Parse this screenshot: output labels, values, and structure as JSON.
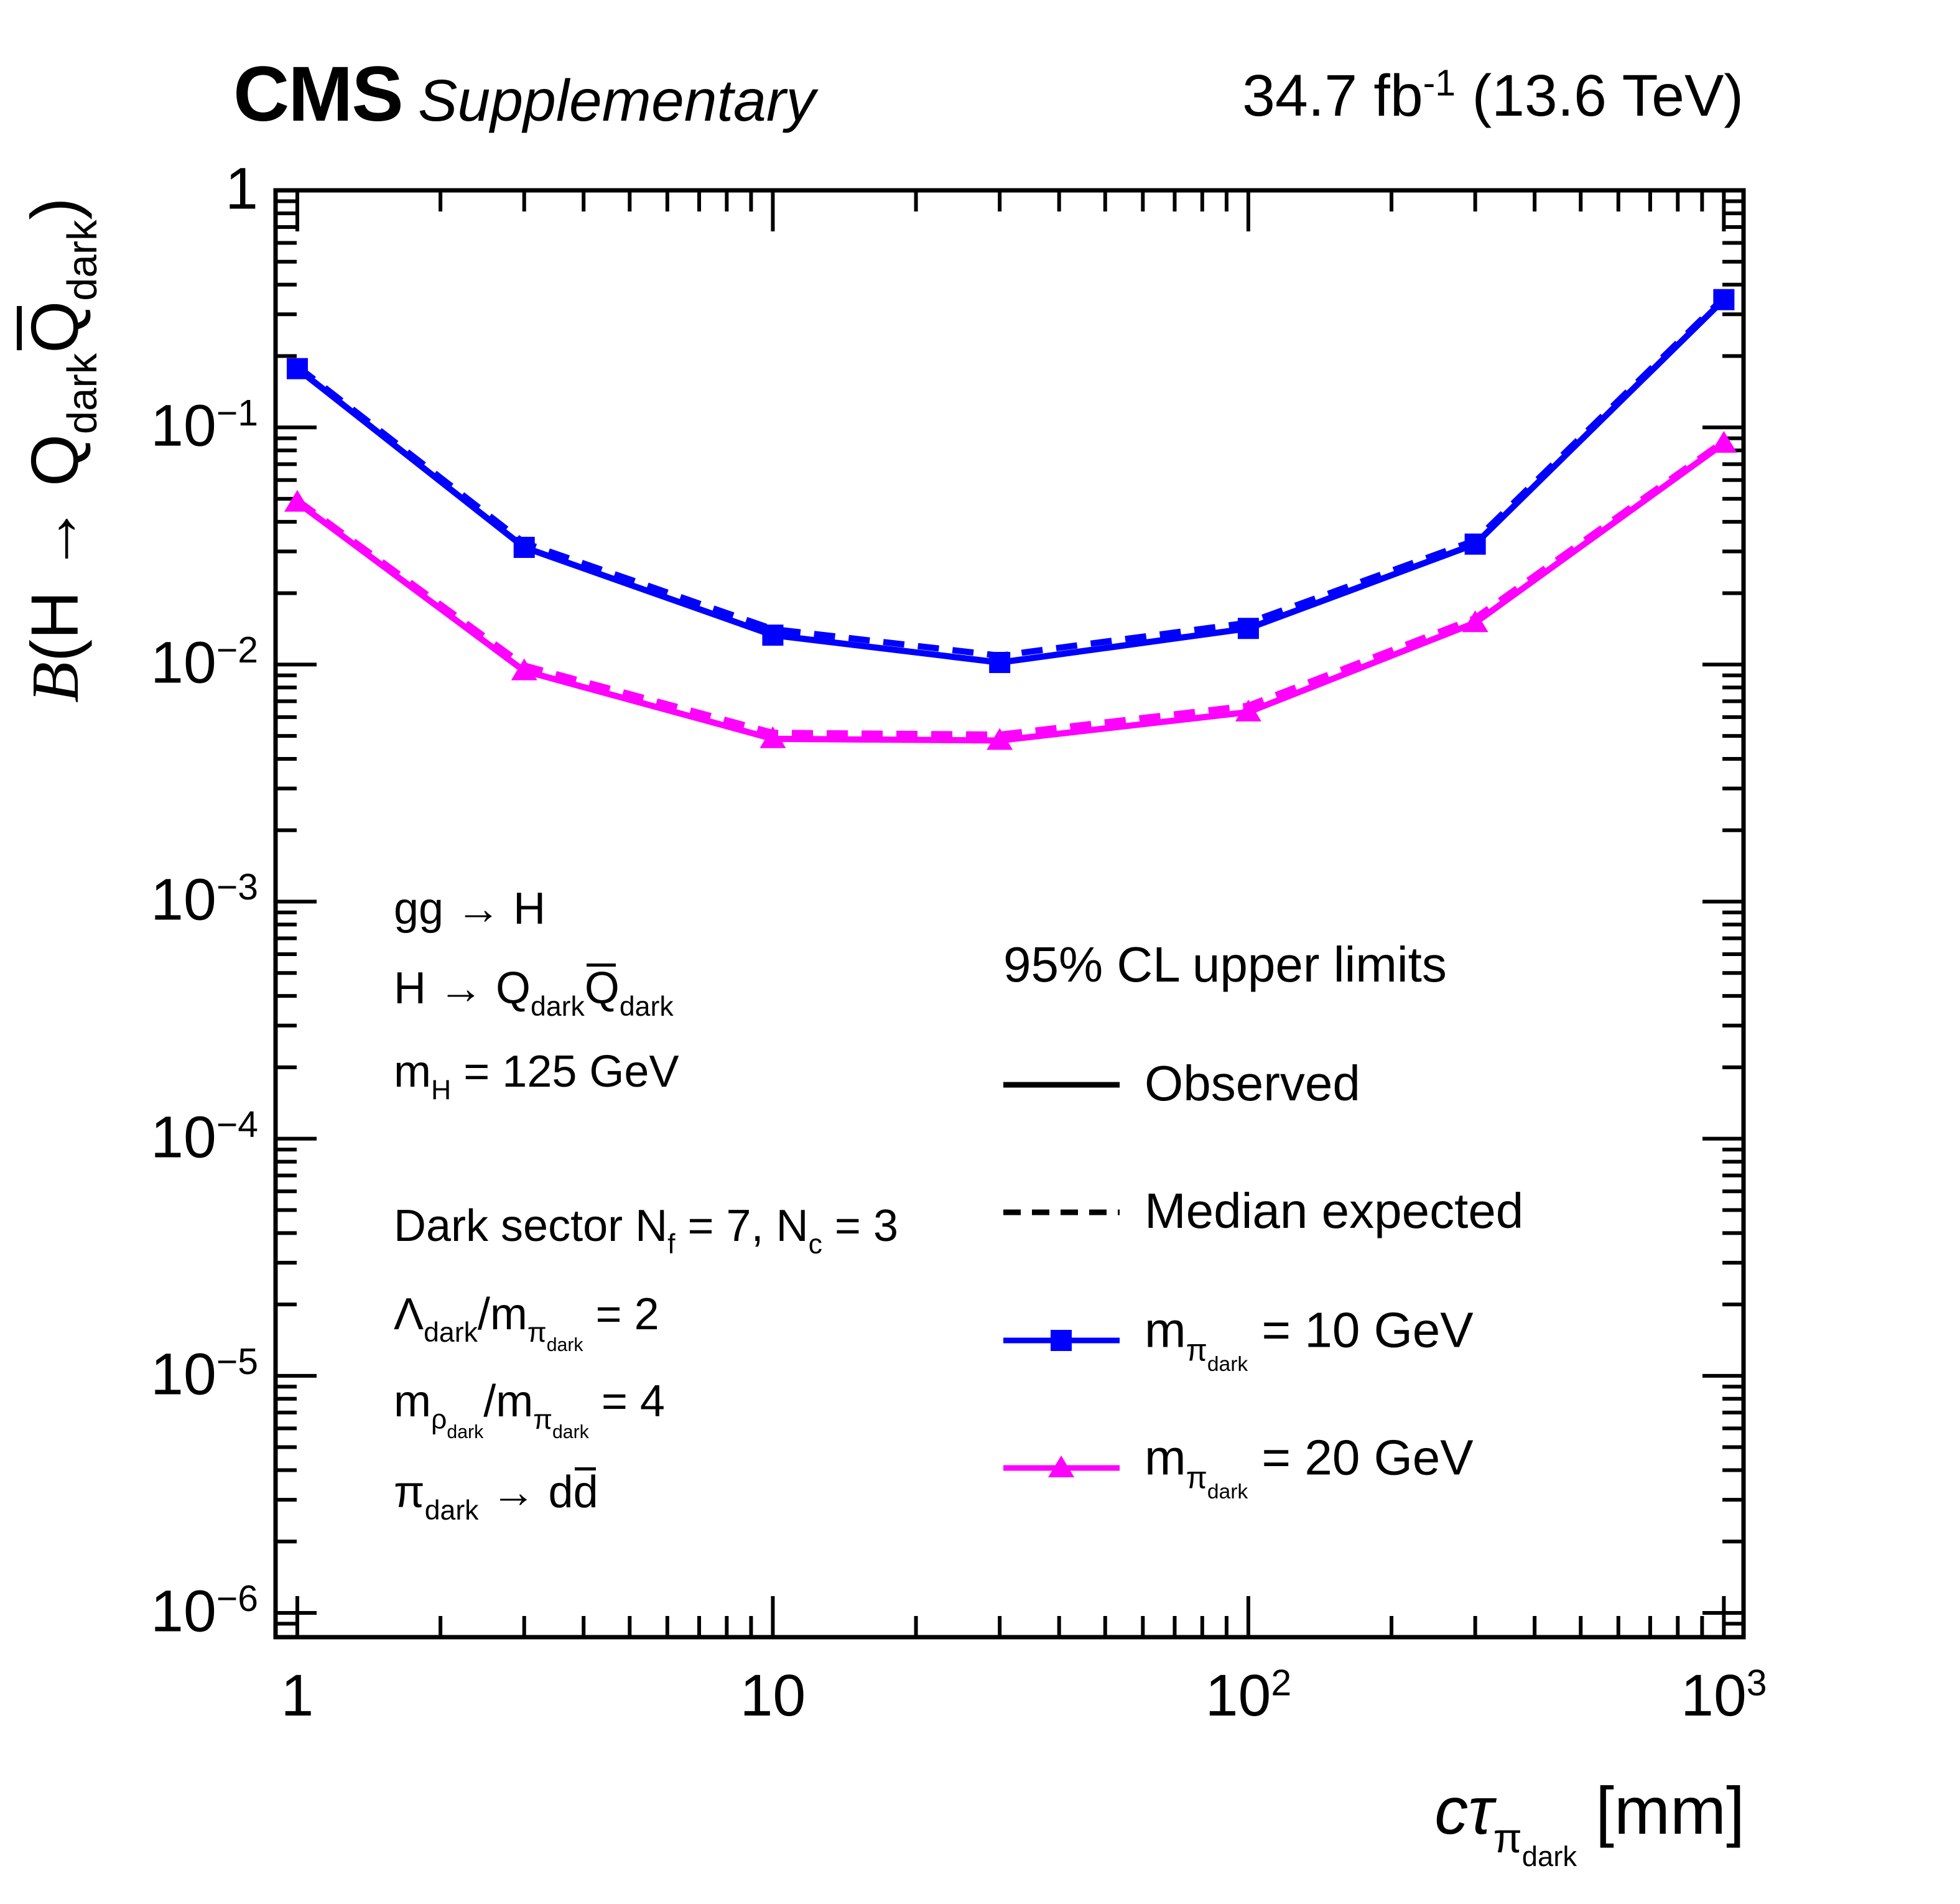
{
  "header": {
    "experiment": "CMS",
    "label": "Supplementary",
    "lumi_rich": [
      {
        "t": "34.7 fb"
      },
      {
        "t": "-1",
        "sup": true
      },
      {
        "t": " (13.6 TeV)"
      }
    ]
  },
  "annotations": [
    {
      "name": "production-mode",
      "rich": [
        {
          "t": "gg → H"
        }
      ]
    },
    {
      "name": "higgs-decay",
      "rich": [
        {
          "t": "H → Q"
        },
        {
          "t": "dark",
          "sub": true
        },
        {
          "t": "Q",
          "bar": true
        },
        {
          "t": "dark",
          "sub": true
        }
      ]
    },
    {
      "name": "higgs-mass",
      "rich": [
        {
          "t": "m"
        },
        {
          "t": "H",
          "sub": true
        },
        {
          "t": " = 125 GeV"
        }
      ]
    },
    {
      "name": "dark-sector-params",
      "rich": [
        {
          "t": "Dark sector N"
        },
        {
          "t": "f",
          "sub": true
        },
        {
          "t": " = 7,  N"
        },
        {
          "t": "c",
          "sub": true
        },
        {
          "t": " = 3"
        }
      ]
    },
    {
      "name": "lambda-ratio",
      "rich": [
        {
          "t": "Λ"
        },
        {
          "t": "dark",
          "sub": true
        },
        {
          "t": "/m"
        },
        {
          "t": "π",
          "sub": true
        },
        {
          "t": "dark",
          "subsub": true
        },
        {
          "t": " = 2"
        }
      ]
    },
    {
      "name": "rho-ratio",
      "rich": [
        {
          "t": "m"
        },
        {
          "t": "ρ",
          "sub": true
        },
        {
          "t": "dark",
          "subsub": true
        },
        {
          "t": "/m"
        },
        {
          "t": "π",
          "sub": true
        },
        {
          "t": "dark",
          "subsub": true
        },
        {
          "t": " = 4"
        }
      ]
    },
    {
      "name": "pion-decay",
      "rich": [
        {
          "t": "π"
        },
        {
          "t": "dark",
          "sub": true
        },
        {
          "t": " → d"
        },
        {
          "t": "d",
          "bar": true
        }
      ]
    }
  ],
  "legend": {
    "title": "95% CL upper limits",
    "entries": [
      {
        "id": "observed",
        "label": "Observed",
        "style": "solid",
        "color": "#000000",
        "marker": null
      },
      {
        "id": "expected",
        "label": "Median expected",
        "style": "dashed",
        "color": "#000000",
        "marker": null
      },
      {
        "id": "mpi10",
        "rich": [
          {
            "t": "m"
          },
          {
            "t": "π",
            "sub": true
          },
          {
            "t": "dark",
            "subsub": true
          },
          {
            "t": " = 10 GeV"
          }
        ],
        "style": "solid",
        "color": "#0000ff",
        "marker": "square"
      },
      {
        "id": "mpi20",
        "rich": [
          {
            "t": "m"
          },
          {
            "t": "π",
            "sub": true
          },
          {
            "t": "dark",
            "subsub": true
          },
          {
            "t": " = 20 GeV"
          }
        ],
        "style": "solid",
        "color": "#ff00ff",
        "marker": "triangle"
      }
    ]
  },
  "chart_data": {
    "type": "line",
    "title": "",
    "xlabel_rich": [
      {
        "t": "c",
        "i": true
      },
      {
        "t": "τ",
        "i": true
      },
      {
        "t": "π",
        "sub": true
      },
      {
        "t": "dark",
        "subsub": true
      },
      {
        "t": " [mm]"
      }
    ],
    "ylabel_rich": [
      {
        "t": "B",
        "i": true,
        "serif": true
      },
      {
        "t": "(H → Q"
      },
      {
        "t": "dark",
        "sub": true
      },
      {
        "t": "Q",
        "bar": true
      },
      {
        "t": "dark",
        "sub": true
      },
      {
        "t": ")"
      }
    ],
    "x_scale": "log",
    "y_scale": "log",
    "xlim": [
      0.9,
      1100
    ],
    "ylim": [
      7.9e-07,
      1.0
    ],
    "grid": false,
    "legend_position": "center-right",
    "x_major_ticks": [
      {
        "value": 1,
        "label_rich": [
          {
            "t": "1"
          }
        ]
      },
      {
        "value": 10,
        "label_rich": [
          {
            "t": "10"
          }
        ]
      },
      {
        "value": 100,
        "label_rich": [
          {
            "t": "10"
          },
          {
            "t": "2",
            "sup": true
          }
        ]
      },
      {
        "value": 1000,
        "label_rich": [
          {
            "t": "10"
          },
          {
            "t": "3",
            "sup": true
          }
        ]
      }
    ],
    "y_major_ticks": [
      {
        "value": 1,
        "label_rich": [
          {
            "t": "1"
          }
        ]
      },
      {
        "value": 0.1,
        "label_rich": [
          {
            "t": "10"
          },
          {
            "t": "−1",
            "sup": true
          }
        ]
      },
      {
        "value": 0.01,
        "label_rich": [
          {
            "t": "10"
          },
          {
            "t": "−2",
            "sup": true
          }
        ]
      },
      {
        "value": 0.001,
        "label_rich": [
          {
            "t": "10"
          },
          {
            "t": "−3",
            "sup": true
          }
        ]
      },
      {
        "value": 0.0001,
        "label_rich": [
          {
            "t": "10"
          },
          {
            "t": "−4",
            "sup": true
          }
        ]
      },
      {
        "value": 1e-05,
        "label_rich": [
          {
            "t": "10"
          },
          {
            "t": "−5",
            "sup": true
          }
        ]
      },
      {
        "value": 1e-06,
        "label_rich": [
          {
            "t": "10"
          },
          {
            "t": "−6",
            "sup": true
          }
        ]
      }
    ],
    "x": [
      1,
      3,
      10,
      30,
      100,
      300,
      1000
    ],
    "series": [
      {
        "id": "mpi10-observed",
        "name": "m_pi_dark = 10 GeV, Observed",
        "color": "#0000ff",
        "style": "solid",
        "marker": "square",
        "values": [
          0.177,
          0.0312,
          0.0133,
          0.0102,
          0.0142,
          0.0322,
          0.346
        ]
      },
      {
        "id": "mpi10-expected",
        "name": "m_pi_dark = 10 GeV, Median expected",
        "color": "#0000ff",
        "style": "dashed",
        "marker": null,
        "values": [
          0.181,
          0.0326,
          0.0141,
          0.0109,
          0.015,
          0.0334,
          0.353
        ]
      },
      {
        "id": "mpi20-observed",
        "name": "m_pi_dark = 20 GeV, Observed",
        "color": "#ff00ff",
        "style": "solid",
        "marker": "triangle",
        "values": [
          0.0483,
          0.0094,
          0.00486,
          0.00478,
          0.0063,
          0.015,
          0.0856
        ]
      },
      {
        "id": "mpi20-expected",
        "name": "m_pi_dark = 20 GeV, Median expected",
        "color": "#ff00ff",
        "style": "dashed",
        "marker": null,
        "values": [
          0.0493,
          0.0099,
          0.00515,
          0.00506,
          0.0067,
          0.0157,
          0.0874
        ]
      }
    ]
  },
  "colors": {
    "blue": "#0000ff",
    "magenta": "#ff00ff",
    "frame": "#000000"
  }
}
